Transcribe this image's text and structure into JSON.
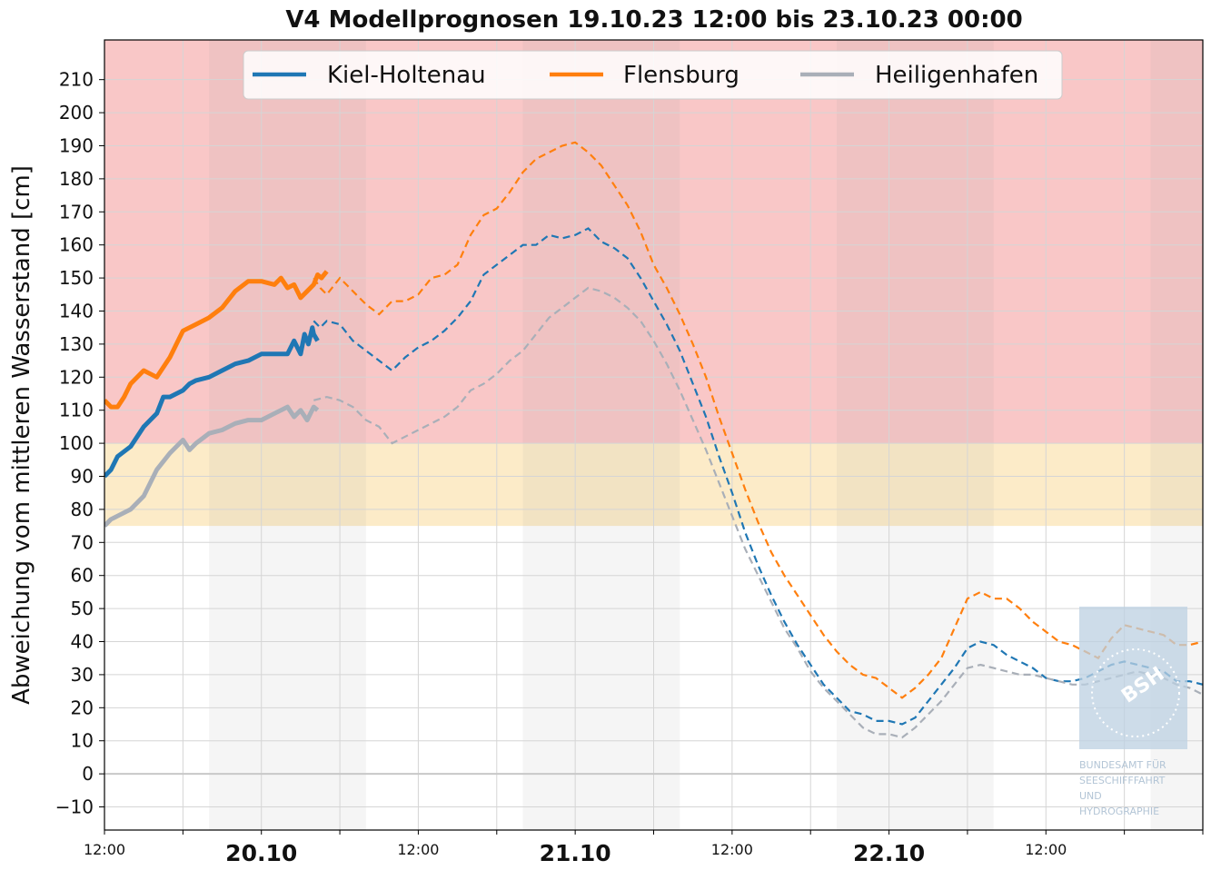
{
  "chart_data": {
    "type": "line",
    "title": "V4 Modellprognosen 19.10.23 12:00 bis 23.10.23 00:00",
    "ylabel": "Abweichung vom mittleren Wasserstand [cm]",
    "xlabel": "",
    "x_unit": "hours since 19.10.23 12:00",
    "xlim": [
      0,
      84
    ],
    "ylim": [
      -17,
      222
    ],
    "yticks": [
      -10,
      0,
      10,
      20,
      30,
      40,
      50,
      60,
      70,
      80,
      90,
      100,
      110,
      120,
      130,
      140,
      150,
      160,
      170,
      180,
      190,
      200,
      210
    ],
    "xticks_major": [
      {
        "x": 12,
        "label": "20.10"
      },
      {
        "x": 36,
        "label": "21.10"
      },
      {
        "x": 60,
        "label": "22.10"
      }
    ],
    "xticks_minor": [
      {
        "x": 0,
        "label": "12:00"
      },
      {
        "x": 24,
        "label": "12:00"
      },
      {
        "x": 48,
        "label": "12:00"
      },
      {
        "x": 72,
        "label": "12:00"
      }
    ],
    "grid": true,
    "legend_position": "top-center",
    "bands": [
      {
        "from": 100,
        "to": 222,
        "color": "#f9c7c7"
      },
      {
        "from": 75,
        "to": 100,
        "color": "#fcebc8"
      }
    ],
    "night_shading": [
      [
        8,
        20
      ],
      [
        32,
        44
      ],
      [
        56,
        68
      ],
      [
        80,
        84
      ]
    ],
    "series": [
      {
        "name": "Kiel-Holtenau",
        "color": "#1f77b4",
        "observed": [
          [
            0,
            90
          ],
          [
            0.5,
            92
          ],
          [
            1,
            96
          ],
          [
            2,
            99
          ],
          [
            3,
            105
          ],
          [
            4,
            109
          ],
          [
            4.5,
            114
          ],
          [
            5,
            114
          ],
          [
            6,
            116
          ],
          [
            6.5,
            118
          ],
          [
            7,
            119
          ],
          [
            8,
            120
          ],
          [
            9,
            122
          ],
          [
            10,
            124
          ],
          [
            11,
            125
          ],
          [
            12,
            127
          ],
          [
            13,
            127
          ],
          [
            14,
            127
          ],
          [
            14.5,
            131
          ],
          [
            15,
            127
          ],
          [
            15.3,
            133
          ],
          [
            15.6,
            130
          ],
          [
            15.9,
            135
          ],
          [
            16,
            133
          ],
          [
            16.3,
            131
          ]
        ],
        "forecast": [
          [
            16,
            137
          ],
          [
            16.5,
            135
          ],
          [
            17,
            137
          ],
          [
            18,
            136
          ],
          [
            19,
            131
          ],
          [
            20,
            128
          ],
          [
            21,
            125
          ],
          [
            22,
            122
          ],
          [
            23,
            126
          ],
          [
            24,
            129
          ],
          [
            25,
            131
          ],
          [
            26,
            134
          ],
          [
            27,
            138
          ],
          [
            28,
            143
          ],
          [
            29,
            151
          ],
          [
            30,
            154
          ],
          [
            31,
            157
          ],
          [
            32,
            160
          ],
          [
            33,
            160
          ],
          [
            34,
            163
          ],
          [
            35,
            162
          ],
          [
            36,
            163
          ],
          [
            37,
            165
          ],
          [
            38,
            161
          ],
          [
            39,
            159
          ],
          [
            40,
            156
          ],
          [
            41,
            150
          ],
          [
            42,
            143
          ],
          [
            43,
            136
          ],
          [
            44,
            128
          ],
          [
            45,
            118
          ],
          [
            46,
            108
          ],
          [
            47,
            96
          ],
          [
            48,
            85
          ],
          [
            49,
            73
          ],
          [
            50,
            63
          ],
          [
            51,
            54
          ],
          [
            52,
            46
          ],
          [
            53,
            39
          ],
          [
            54,
            33
          ],
          [
            55,
            27
          ],
          [
            56,
            23
          ],
          [
            57,
            19
          ],
          [
            58,
            18
          ],
          [
            59,
            16
          ],
          [
            60,
            16
          ],
          [
            61,
            15
          ],
          [
            62,
            17
          ],
          [
            63,
            22
          ],
          [
            64,
            27
          ],
          [
            65,
            32
          ],
          [
            66,
            38
          ],
          [
            67,
            40
          ],
          [
            68,
            39
          ],
          [
            69,
            36
          ],
          [
            70,
            34
          ],
          [
            71,
            32
          ],
          [
            72,
            29
          ],
          [
            73,
            28
          ],
          [
            74,
            28
          ],
          [
            75,
            29
          ],
          [
            76,
            31
          ],
          [
            77,
            33
          ],
          [
            78,
            34
          ],
          [
            79,
            33
          ],
          [
            80,
            32
          ],
          [
            81,
            31
          ],
          [
            82,
            28
          ],
          [
            83,
            28
          ],
          [
            84,
            27
          ]
        ]
      },
      {
        "name": "Flensburg",
        "color": "#ff7f0e",
        "observed": [
          [
            0,
            113
          ],
          [
            0.5,
            111
          ],
          [
            1,
            111
          ],
          [
            1.5,
            114
          ],
          [
            2,
            118
          ],
          [
            3,
            122
          ],
          [
            3.5,
            121
          ],
          [
            4,
            120
          ],
          [
            5,
            126
          ],
          [
            5.5,
            130
          ],
          [
            6,
            134
          ],
          [
            7,
            136
          ],
          [
            8,
            138
          ],
          [
            9,
            141
          ],
          [
            10,
            146
          ],
          [
            11,
            149
          ],
          [
            12,
            149
          ],
          [
            13,
            148
          ],
          [
            13.5,
            150
          ],
          [
            14,
            147
          ],
          [
            14.5,
            148
          ],
          [
            15,
            144
          ],
          [
            15.5,
            146
          ],
          [
            16,
            148
          ],
          [
            16.3,
            151
          ],
          [
            16.6,
            150
          ],
          [
            17,
            152
          ]
        ],
        "forecast": [
          [
            16,
            150
          ],
          [
            16.5,
            147
          ],
          [
            17,
            145
          ],
          [
            18,
            150
          ],
          [
            19,
            146
          ],
          [
            20,
            142
          ],
          [
            21,
            139
          ],
          [
            22,
            143
          ],
          [
            23,
            143
          ],
          [
            24,
            145
          ],
          [
            25,
            150
          ],
          [
            26,
            151
          ],
          [
            27,
            154
          ],
          [
            28,
            163
          ],
          [
            29,
            169
          ],
          [
            30,
            171
          ],
          [
            31,
            176
          ],
          [
            32,
            182
          ],
          [
            33,
            186
          ],
          [
            34,
            188
          ],
          [
            35,
            190
          ],
          [
            36,
            191
          ],
          [
            37,
            188
          ],
          [
            38,
            184
          ],
          [
            39,
            178
          ],
          [
            40,
            172
          ],
          [
            41,
            164
          ],
          [
            42,
            154
          ],
          [
            43,
            147
          ],
          [
            44,
            139
          ],
          [
            45,
            130
          ],
          [
            46,
            120
          ],
          [
            47,
            108
          ],
          [
            48,
            97
          ],
          [
            49,
            86
          ],
          [
            50,
            76
          ],
          [
            51,
            67
          ],
          [
            52,
            60
          ],
          [
            53,
            54
          ],
          [
            54,
            48
          ],
          [
            55,
            42
          ],
          [
            56,
            37
          ],
          [
            57,
            33
          ],
          [
            58,
            30
          ],
          [
            59,
            29
          ],
          [
            60,
            26
          ],
          [
            61,
            23
          ],
          [
            62,
            26
          ],
          [
            63,
            30
          ],
          [
            64,
            35
          ],
          [
            65,
            44
          ],
          [
            66,
            53
          ],
          [
            67,
            55
          ],
          [
            68,
            53
          ],
          [
            69,
            53
          ],
          [
            70,
            50
          ],
          [
            71,
            46
          ],
          [
            72,
            43
          ],
          [
            73,
            40
          ],
          [
            74,
            39
          ],
          [
            75,
            37
          ],
          [
            76,
            35
          ],
          [
            77,
            41
          ],
          [
            78,
            45
          ],
          [
            79,
            44
          ],
          [
            80,
            43
          ],
          [
            81,
            42
          ],
          [
            82,
            39
          ],
          [
            83,
            39
          ],
          [
            84,
            40
          ]
        ]
      },
      {
        "name": "Heiligenhafen",
        "color": "#a9afb8",
        "observed": [
          [
            0,
            75
          ],
          [
            0.5,
            77
          ],
          [
            1,
            78
          ],
          [
            2,
            80
          ],
          [
            3,
            84
          ],
          [
            4,
            92
          ],
          [
            5,
            97
          ],
          [
            6,
            101
          ],
          [
            6.5,
            98
          ],
          [
            7,
            100
          ],
          [
            8,
            103
          ],
          [
            9,
            104
          ],
          [
            10,
            106
          ],
          [
            11,
            107
          ],
          [
            12,
            107
          ],
          [
            13,
            109
          ],
          [
            14,
            111
          ],
          [
            14.5,
            108
          ],
          [
            15,
            110
          ],
          [
            15.5,
            107
          ],
          [
            16,
            111
          ],
          [
            16.3,
            110
          ]
        ],
        "forecast": [
          [
            16,
            113
          ],
          [
            17,
            114
          ],
          [
            18,
            113
          ],
          [
            19,
            111
          ],
          [
            20,
            107
          ],
          [
            21,
            105
          ],
          [
            22,
            100
          ],
          [
            23,
            102
          ],
          [
            24,
            104
          ],
          [
            25,
            106
          ],
          [
            26,
            108
          ],
          [
            27,
            111
          ],
          [
            28,
            116
          ],
          [
            29,
            118
          ],
          [
            30,
            121
          ],
          [
            31,
            125
          ],
          [
            32,
            128
          ],
          [
            33,
            133
          ],
          [
            34,
            138
          ],
          [
            35,
            141
          ],
          [
            36,
            144
          ],
          [
            37,
            147
          ],
          [
            38,
            146
          ],
          [
            39,
            144
          ],
          [
            40,
            141
          ],
          [
            41,
            137
          ],
          [
            42,
            131
          ],
          [
            43,
            124
          ],
          [
            44,
            116
          ],
          [
            45,
            107
          ],
          [
            46,
            98
          ],
          [
            47,
            88
          ],
          [
            48,
            78
          ],
          [
            49,
            68
          ],
          [
            50,
            60
          ],
          [
            51,
            52
          ],
          [
            52,
            44
          ],
          [
            53,
            38
          ],
          [
            54,
            31
          ],
          [
            55,
            26
          ],
          [
            56,
            22
          ],
          [
            57,
            18
          ],
          [
            58,
            14
          ],
          [
            59,
            12
          ],
          [
            60,
            12
          ],
          [
            61,
            11
          ],
          [
            62,
            14
          ],
          [
            63,
            18
          ],
          [
            64,
            22
          ],
          [
            65,
            27
          ],
          [
            66,
            32
          ],
          [
            67,
            33
          ],
          [
            68,
            32
          ],
          [
            69,
            31
          ],
          [
            70,
            30
          ],
          [
            71,
            30
          ],
          [
            72,
            29
          ],
          [
            73,
            28
          ],
          [
            74,
            27
          ],
          [
            75,
            27
          ],
          [
            76,
            28
          ],
          [
            77,
            29
          ],
          [
            78,
            30
          ],
          [
            79,
            31
          ],
          [
            80,
            30
          ],
          [
            81,
            29
          ],
          [
            82,
            27
          ],
          [
            83,
            26
          ],
          [
            84,
            24
          ]
        ]
      }
    ]
  },
  "watermark": {
    "logo_text": "BSH",
    "lines": [
      "BUNDESAMT FÜR",
      "SEESCHIFFFAHRT",
      "UND",
      "HYDROGRAPHIE"
    ]
  }
}
